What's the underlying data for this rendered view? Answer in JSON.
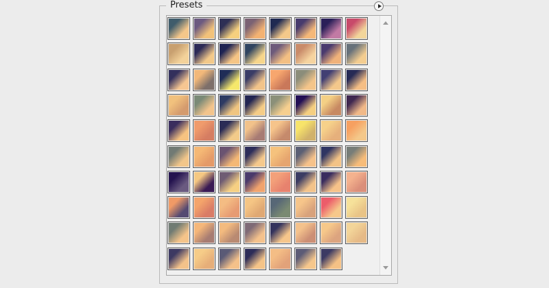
{
  "panel": {
    "title": "Presets",
    "menu_icon": "flyout-menu-icon"
  },
  "scrollbar": {
    "up_icon": "scroll-up-arrow-icon",
    "down_icon": "scroll-down-arrow-icon"
  },
  "presets": {
    "columns": 8,
    "rows": [
      [
        [
          "#3f5c6b",
          "#f5c78a"
        ],
        [
          "#6c5a80",
          "#f2c27a"
        ],
        [
          "#2e2f55",
          "#f6d07e"
        ],
        [
          "#7b6273",
          "#f3b272"
        ],
        [
          "#1f2a52",
          "#f4c98a"
        ],
        [
          "#473b6d",
          "#f5b878"
        ],
        [
          "#2a1f58",
          "#c27aa4"
        ],
        [
          "#c84a6a",
          "#f2d59a"
        ]
      ],
      [
        [
          "#c8a070",
          "#f3d29a"
        ],
        [
          "#2c2a57",
          "#f3c98a"
        ],
        [
          "#1e2353",
          "#f6c585"
        ],
        [
          "#2f4460",
          "#f7d68b"
        ],
        [
          "#6d5a7b",
          "#f3bf83"
        ],
        [
          "#c98b6a",
          "#f6d4a0"
        ],
        [
          "#4a3a6e",
          "#f0b27a"
        ],
        [
          "#67717a",
          "#f4cd90"
        ]
      ],
      [
        [
          "#33305c",
          "#f6c692"
        ],
        [
          "#f2b87a",
          "#7d6f6a"
        ],
        [
          "#1f2d57",
          "#f6e86b"
        ],
        [
          "#3a3c66",
          "#f2c48a"
        ],
        [
          "#f7a66e",
          "#c9785a"
        ],
        [
          "#8b8d7a",
          "#f4c58a"
        ],
        [
          "#423f73",
          "#f4c88b"
        ],
        [
          "#262a55",
          "#f5be85"
        ]
      ],
      [
        [
          "#f1c17d",
          "#d49b6e"
        ],
        [
          "#7a8a77",
          "#f3c48c"
        ],
        [
          "#2d3a63",
          "#f0c580"
        ],
        [
          "#222552",
          "#f5cc86"
        ],
        [
          "#8b9079",
          "#f6cf8f"
        ],
        [
          "#230f55",
          "#f5cf80"
        ],
        [
          "#f4d085",
          "#c78962"
        ],
        [
          "#3f2750",
          "#f1b988"
        ]
      ],
      [
        [
          "#3a2d5e",
          "#f7c381"
        ],
        [
          "#f09b6c",
          "#d57d62"
        ],
        [
          "#2b2c56",
          "#f3cb8a"
        ],
        [
          "#f2c28a",
          "#a77b74"
        ],
        [
          "#f6c48b",
          "#c58a6c"
        ],
        [
          "#f7e46a",
          "#d1b26b"
        ],
        [
          "#f6d18a",
          "#e6b07c"
        ],
        [
          "#f6a060",
          "#f4c88a"
        ]
      ],
      [
        [
          "#717a74",
          "#f2c68a"
        ],
        [
          "#f5b875",
          "#e49a68"
        ],
        [
          "#6a5371",
          "#f4b875"
        ],
        [
          "#2d2d5a",
          "#f6c98c"
        ],
        [
          "#f5c27d",
          "#e6a56f"
        ],
        [
          "#5b5f74",
          "#f6c28a"
        ],
        [
          "#2f3562",
          "#f3c386"
        ],
        [
          "#777d78",
          "#f7bc79"
        ]
      ],
      [
        [
          "#24134f",
          "#6a5a80"
        ],
        [
          "#f5c882",
          "#3a1a54"
        ],
        [
          "#6f5c73",
          "#f6d083"
        ],
        [
          "#4a3a6b",
          "#f1a36d"
        ],
        [
          "#f3a07a",
          "#e7826e"
        ],
        [
          "#3b3c63",
          "#f3c38a"
        ],
        [
          "#3a2d5e",
          "#f6c289"
        ],
        [
          "#f4b28e",
          "#db8f7a"
        ]
      ],
      [
        [
          "#f09a66",
          "#554a72"
        ],
        [
          "#f4a46b",
          "#d97c66"
        ],
        [
          "#f4bc83",
          "#e79b73"
        ],
        [
          "#f5c584",
          "#e0a873"
        ],
        [
          "#576776",
          "#7a8a72"
        ],
        [
          "#f6c58a",
          "#d8a27c"
        ],
        [
          "#ec5d6a",
          "#f6c88b"
        ],
        [
          "#f6e19a",
          "#e9c487"
        ]
      ],
      [
        [
          "#707b73",
          "#f5c48a"
        ],
        [
          "#f5b77a",
          "#a77c72"
        ],
        [
          "#f3bb7f",
          "#b98a72"
        ],
        [
          "#7e6a76",
          "#f5c28c"
        ],
        [
          "#34335d",
          "#f6c68b"
        ],
        [
          "#f4c28c",
          "#cc8f75"
        ],
        [
          "#f6c88a",
          "#dca47f"
        ],
        [
          "#f3d599",
          "#e6ba87"
        ]
      ],
      [
        [
          "#3d3962",
          "#f3c28a"
        ],
        [
          "#f6cc88",
          "#e6ae79"
        ],
        [
          "#5a5a76",
          "#f4c18a"
        ],
        [
          "#2c2c58",
          "#f5c488"
        ],
        [
          "#f4bd85",
          "#e2a27a"
        ],
        [
          "#5c5b76",
          "#f6c78c"
        ],
        [
          "#3b3a63",
          "#f5c185"
        ]
      ]
    ]
  }
}
